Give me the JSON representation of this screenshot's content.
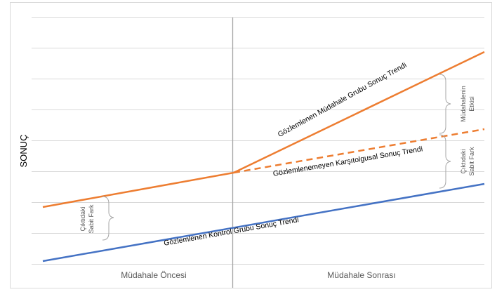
{
  "y_axis_label": "SONUÇ",
  "x_labels": {
    "before": "Müdahale Öncesi",
    "after": "Müdahale Sonrası"
  },
  "lines": {
    "treatment": "Gözlemlenen Müdahale Grubu Sonuç Trendi",
    "counterfactual": "Gözlemlenemeyen Karşıtolgusal Sonuç Trendi",
    "control": "Gözlemlenen Kontrol Grubu Sonuç Trendi"
  },
  "braces": {
    "before_line1": "Çıktıdaki",
    "before_line2": "Sabit Fark",
    "effect_line1": "Müdahalenin",
    "effect_line2": "Etkisi",
    "after_line1": "Çıktıdaki",
    "after_line2": "Sabit Fark"
  },
  "colors": {
    "treatment": "#ED7D31",
    "control": "#4472C4",
    "grid": "#D9D9D9",
    "divider": "#A6A6A6",
    "text": "#000000",
    "muted": "#595959"
  }
}
